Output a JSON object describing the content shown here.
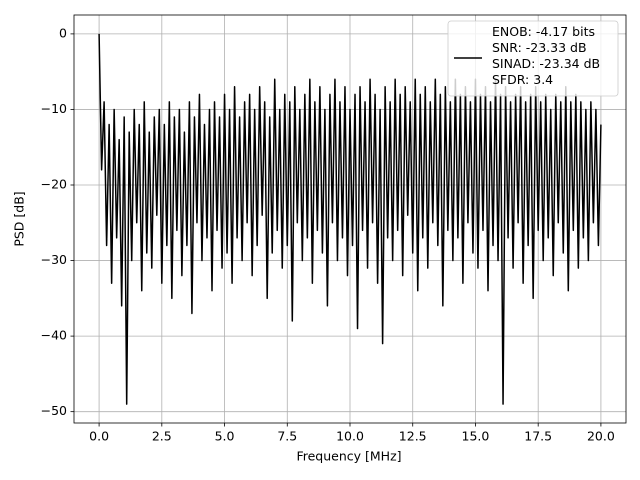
{
  "chart_data": {
    "type": "line",
    "xlabel": "Frequency [MHz]",
    "ylabel": "PSD [dB]",
    "xlim": [
      -1,
      21
    ],
    "ylim": [
      -51.5,
      2.5
    ],
    "xticks": [
      {
        "value": 0,
        "label": "0.0"
      },
      2.5,
      {
        "value": 5,
        "label": "5.0"
      },
      7.5,
      {
        "value": 10,
        "label": "10.0"
      },
      12.5,
      {
        "value": 15,
        "label": "15.0"
      },
      17.5,
      {
        "value": 20,
        "label": "20.0"
      }
    ],
    "yticks": [
      {
        "value": 0,
        "label": "0"
      },
      {
        "value": -10,
        "label": "−10"
      },
      {
        "value": -20,
        "label": "−20"
      },
      {
        "value": -30,
        "label": "−30"
      },
      {
        "value": -40,
        "label": "−40"
      },
      {
        "value": -50,
        "label": "−50"
      }
    ],
    "grid": true,
    "legend": "upper right",
    "x": [
      0,
      0.1,
      0.2,
      0.3,
      0.4,
      0.5,
      0.6,
      0.7,
      0.8,
      0.9,
      1,
      1.1,
      1.2,
      1.3,
      1.4,
      1.5,
      1.6,
      1.7,
      1.8,
      1.9,
      2,
      2.1,
      2.2,
      2.3,
      2.4,
      2.5,
      2.6,
      2.7,
      2.8,
      2.9,
      3,
      3.1,
      3.2,
      3.3,
      3.4,
      3.5,
      3.6,
      3.7,
      3.8,
      3.9,
      4,
      4.1,
      4.2,
      4.3,
      4.4,
      4.5,
      4.6,
      4.7,
      4.8,
      4.9,
      5,
      5.1,
      5.2,
      5.3,
      5.4,
      5.5,
      5.6,
      5.7,
      5.8,
      5.9,
      6,
      6.1,
      6.2,
      6.3,
      6.4,
      6.5,
      6.6,
      6.7,
      6.8,
      6.9,
      7,
      7.1,
      7.2,
      7.3,
      7.4,
      7.5,
      7.6,
      7.7,
      7.8,
      7.9,
      8,
      8.1,
      8.2,
      8.3,
      8.4,
      8.5,
      8.6,
      8.7,
      8.8,
      8.9,
      9,
      9.1,
      9.2,
      9.3,
      9.4,
      9.5,
      9.6,
      9.7,
      9.8,
      9.9,
      10,
      10.1,
      10.2,
      10.3,
      10.4,
      10.5,
      10.6,
      10.7,
      10.8,
      10.9,
      11,
      11.1,
      11.2,
      11.3,
      11.4,
      11.5,
      11.6,
      11.7,
      11.8,
      11.9,
      12,
      12.1,
      12.2,
      12.3,
      12.4,
      12.5,
      12.6,
      12.7,
      12.8,
      12.9,
      13,
      13.1,
      13.2,
      13.3,
      13.4,
      13.5,
      13.6,
      13.7,
      13.8,
      13.9,
      14,
      14.1,
      14.2,
      14.3,
      14.4,
      14.5,
      14.6,
      14.7,
      14.8,
      14.9,
      15,
      15.1,
      15.2,
      15.3,
      15.4,
      15.5,
      15.6,
      15.7,
      15.8,
      15.9,
      16,
      16.1,
      16.2,
      16.3,
      16.4,
      16.5,
      16.6,
      16.7,
      16.8,
      16.9,
      17,
      17.1,
      17.2,
      17.3,
      17.4,
      17.5,
      17.6,
      17.7,
      17.8,
      17.9,
      18,
      18.1,
      18.2,
      18.3,
      18.4,
      18.5,
      18.6,
      18.7,
      18.8,
      18.9,
      19,
      19.1,
      19.2,
      19.3,
      19.4,
      19.5,
      19.6,
      19.7,
      19.8,
      19.9,
      20
    ],
    "series": [
      {
        "name": "ENOB: -4.17 bits\nSNR: -23.33 dB\nSINAD: -23.34 dB\nSFDR: 3.4",
        "color": "#000000",
        "values": [
          0,
          -18,
          -9,
          -28,
          -12,
          -33,
          -10,
          -27,
          -14,
          -36,
          -11,
          -49,
          -13,
          -30,
          -10,
          -25,
          -12,
          -34,
          -9,
          -29,
          -13,
          -31,
          -11,
          -24,
          -10,
          -33,
          -12,
          -28,
          -9,
          -35,
          -11,
          -26,
          -10,
          -32,
          -13,
          -28,
          -9,
          -37,
          -11,
          -25,
          -8,
          -30,
          -12,
          -27,
          -10,
          -34,
          -9,
          -26,
          -11,
          -31,
          -8,
          -29,
          -10,
          -33,
          -7,
          -27,
          -11,
          -30,
          -9,
          -25,
          -8,
          -32,
          -10,
          -28,
          -7,
          -24,
          -9,
          -35,
          -11,
          -29,
          -6,
          -26,
          -10,
          -31,
          -8,
          -28,
          -9,
          -38,
          -7,
          -25,
          -10,
          -30,
          -8,
          -27,
          -6,
          -33,
          -9,
          -26,
          -7,
          -29,
          -10,
          -36,
          -8,
          -25,
          -6,
          -30,
          -9,
          -27,
          -7,
          -32,
          -10,
          -28,
          -8,
          -39,
          -7,
          -26,
          -9,
          -31,
          -6,
          -25,
          -8,
          -33,
          -10,
          -41,
          -7,
          -27,
          -9,
          -30,
          -6,
          -26,
          -8,
          -32,
          -7,
          -24,
          -9,
          -29,
          -6,
          -34,
          -8,
          -27,
          -7,
          -31,
          -9,
          -25,
          -6,
          -28,
          -8,
          -36,
          -7,
          -26,
          -9,
          -30,
          -6,
          -27,
          -8,
          -33,
          -7,
          -25,
          -9,
          -29,
          -6,
          -31,
          -8,
          -26,
          -7,
          -34,
          -9,
          -28,
          -6,
          -30,
          -8,
          -49,
          -7,
          -27,
          -9,
          -31,
          -8,
          -25,
          -7,
          -33,
          -9,
          -28,
          -8,
          -35,
          -7,
          -26,
          -9,
          -30,
          -8,
          -27,
          -10,
          -32,
          -8,
          -25,
          -9,
          -29,
          -7,
          -34,
          -9,
          -26,
          -8,
          -31,
          -9,
          -27,
          -10,
          -30,
          -9,
          -25,
          -10,
          -28,
          -12
        ]
      }
    ]
  }
}
